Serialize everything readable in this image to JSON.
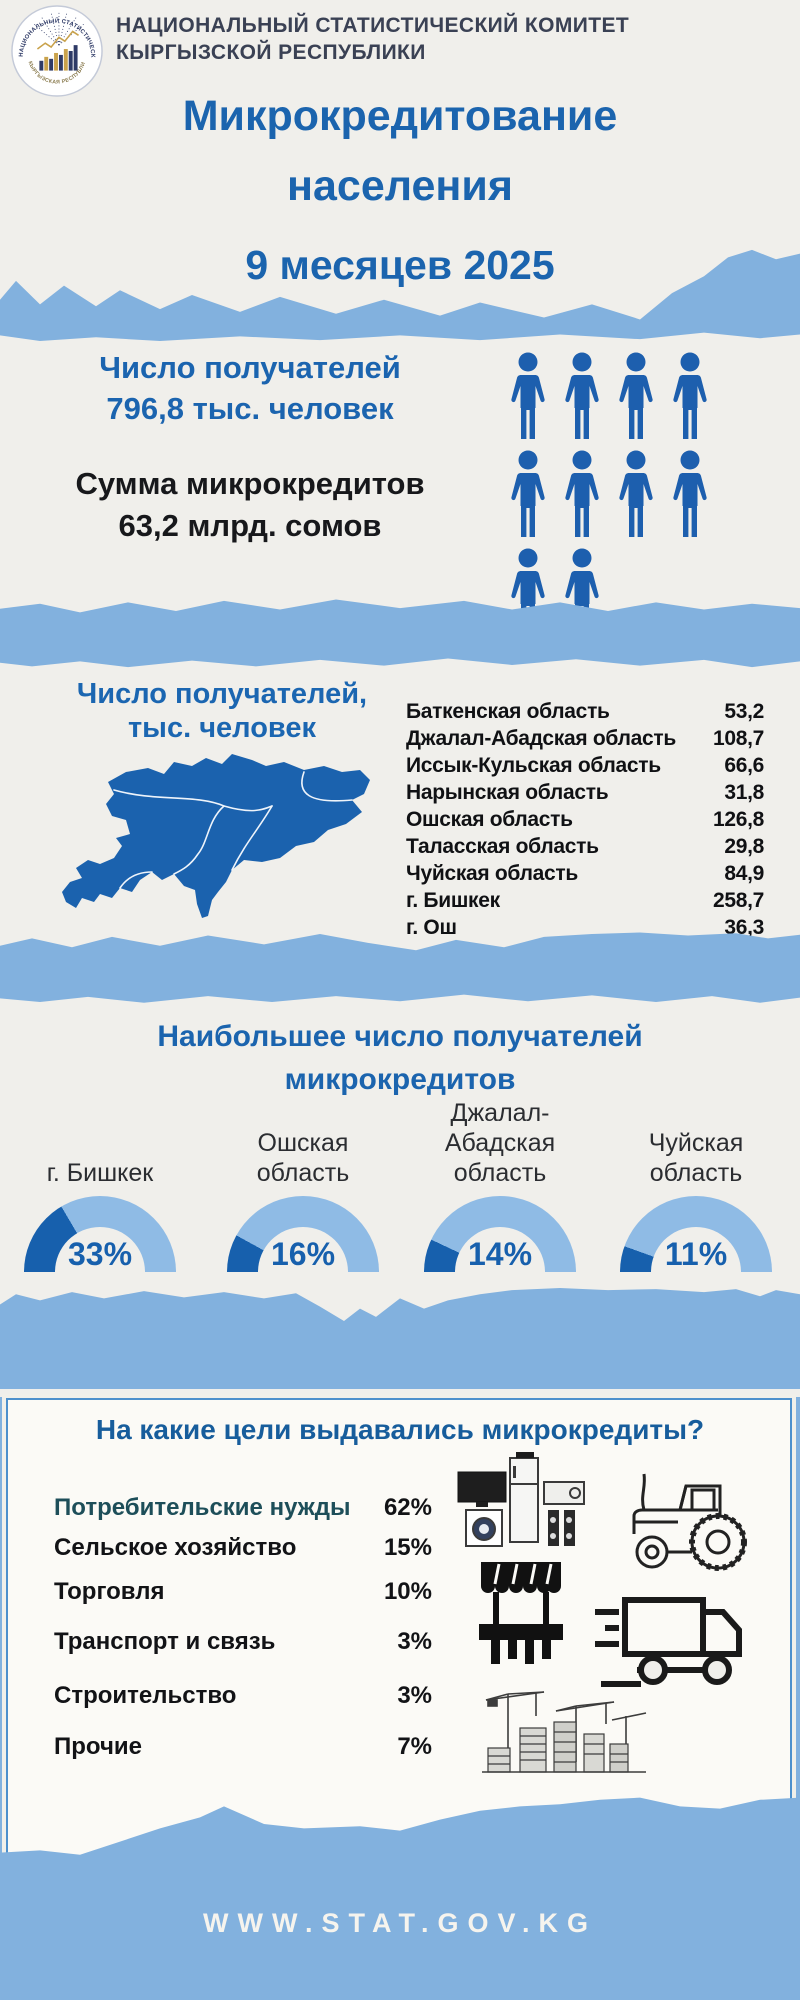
{
  "logo": {
    "ring_top": "НАЦИОНАЛЬНЫЙ СТАТИСТИЧЕСКИЙ КОМИТЕТ",
    "ring_bottom": "КЫРГЫЗСКАЯ РЕСПУБЛИКА"
  },
  "header": {
    "org_line1": "НАЦИОНАЛЬНЫЙ СТАТИСТИЧЕСКИЙ КОМИТЕТ",
    "org_line2": "КЫРГЫЗСКОЙ РЕСПУБЛИКИ",
    "title_line1": "Микрокредитование",
    "title_line2": "населения",
    "period": "9 месяцев 2025"
  },
  "summary": {
    "recipients_line1": "Число получателей",
    "recipients_line2": "796,8 тыс. человек",
    "amount_line1": "Сумма микрокредитов",
    "amount_line2": "63,2 млрд. сомов",
    "pictogram_count": 10
  },
  "regions": {
    "title_line1": "Число получателей,",
    "title_line2": "тыс. человек",
    "rows": [
      {
        "label": "Баткенская область",
        "value": "53,2"
      },
      {
        "label": "Джалал-Абадская область",
        "value": "108,7"
      },
      {
        "label": "Иссык-Кульская область",
        "value": "66,6"
      },
      {
        "label": "Нарынская область",
        "value": "31,8"
      },
      {
        "label": "Ошская область",
        "value": "126,8"
      },
      {
        "label": "Таласская область",
        "value": "29,8"
      },
      {
        "label": "Чуйская область",
        "value": "84,9"
      },
      {
        "label": "г. Бишкек",
        "value": "258,7"
      },
      {
        "label": "г. Ош",
        "value": "36,3"
      }
    ]
  },
  "top_recipients": {
    "title_line1": "Наибольшее число получателей",
    "title_line2": "микрокредитов",
    "gauges": [
      {
        "label": "г. Бишкек",
        "pct": 33,
        "pct_label": "33%"
      },
      {
        "label": "Ошская область",
        "pct": 16,
        "pct_label": "16%"
      },
      {
        "label": "Джалал-Абадская область",
        "pct": 14,
        "pct_label": "14%"
      },
      {
        "label": "Чуйская область",
        "pct": 11,
        "pct_label": "11%"
      }
    ]
  },
  "purposes": {
    "title": "На какие цели выдавались микрокредиты?",
    "rows": [
      {
        "label": "Потребительские нужды",
        "value": "62%"
      },
      {
        "label": "Сельское хозяйство",
        "value": "15%"
      },
      {
        "label": "Торговля",
        "value": "10%"
      },
      {
        "label": "Транспорт и связь",
        "value": "3%"
      },
      {
        "label": "Строительство",
        "value": "3%"
      },
      {
        "label": "Прочие",
        "value": "7%"
      }
    ]
  },
  "footer": {
    "website": "WWW.STAT.GOV.KG"
  },
  "colors": {
    "page_bg": "#f0efeb",
    "band_blue": "#82b1de",
    "dark_blue": "#1760ad",
    "title_blue": "#1b64ae",
    "gauge_light": "#8fbbe5",
    "navy_text": "#3a4154",
    "teal_text": "#1d4e59",
    "card_border": "#4d90cc",
    "footer_text": "#f6f4ee"
  },
  "chart_data": [
    {
      "type": "table",
      "title": "Число получателей, тыс. человек",
      "categories": [
        "Баткенская область",
        "Джалал-Абадская область",
        "Иссык-Кульская область",
        "Нарынская область",
        "Ошская область",
        "Таласская область",
        "Чуйская область",
        "г. Бишкек",
        "г. Ош"
      ],
      "values": [
        53.2,
        108.7,
        66.6,
        31.8,
        126.8,
        29.8,
        84.9,
        258.7,
        36.3
      ]
    },
    {
      "type": "pie",
      "title": "Наибольшее число получателей микрокредитов",
      "categories": [
        "г. Бишкек",
        "Ошская область",
        "Джалал-Абадская область",
        "Чуйская область"
      ],
      "values": [
        33,
        16,
        14,
        11
      ],
      "unit": "%"
    },
    {
      "type": "table",
      "title": "На какие цели выдавались микрокредиты?",
      "categories": [
        "Потребительские нужды",
        "Сельское хозяйство",
        "Торговля",
        "Транспорт и связь",
        "Строительство",
        "Прочие"
      ],
      "values": [
        62,
        15,
        10,
        3,
        3,
        7
      ],
      "unit": "%"
    }
  ]
}
